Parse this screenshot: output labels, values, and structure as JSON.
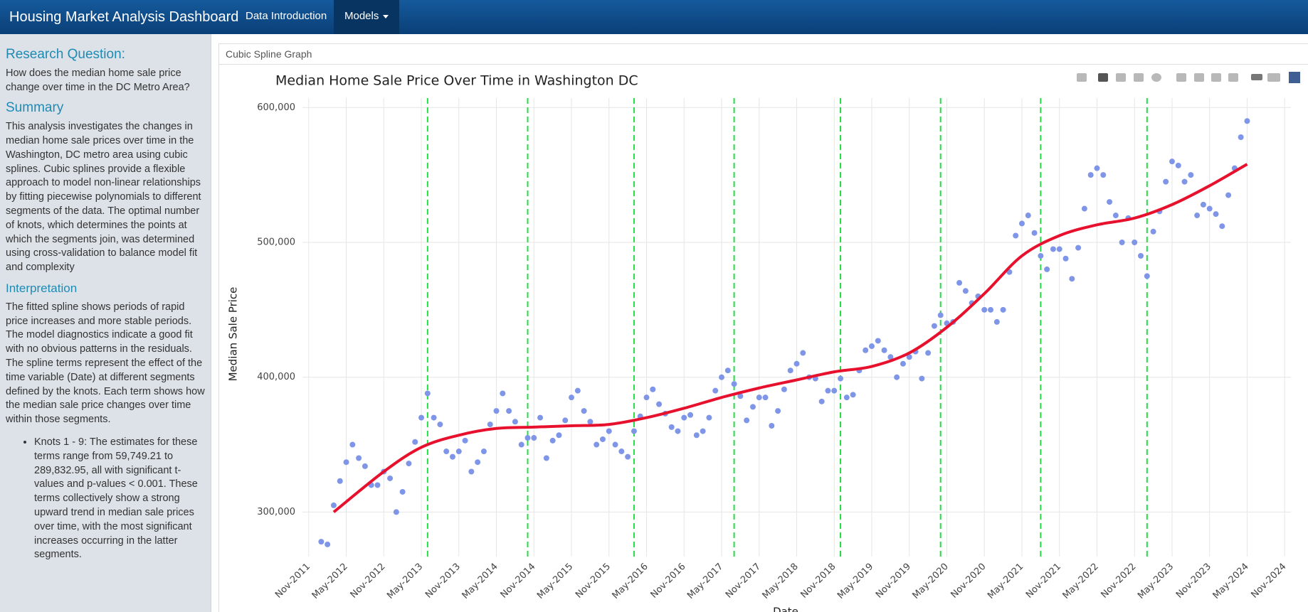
{
  "navbar": {
    "brand": "Housing Market Analysis Dashboard",
    "items": [
      "Data Introduction",
      "Models"
    ]
  },
  "sidebar": {
    "research_question": {
      "heading": "Research Question:",
      "text": "How does the median home sale price change over time in the DC Metro Area?"
    },
    "summary": {
      "heading": "Summary",
      "text": "This analysis investigates the changes in median home sale prices over time in the Washington, DC metro area using cubic splines. Cubic splines provide a flexible approach to model non-linear relationships by fitting piecewise polynomials to different segments of the data. The optimal number of knots, which determines the points at which the segments join, was determined using cross-validation to balance model fit and complexity"
    },
    "interpretation": {
      "heading": "Interpretation",
      "text": "The fitted spline shows periods of rapid price increases and more stable periods. The model diagnostics indicate a good fit with no obvious patterns in the residuals. The spline terms represent the effect of the time variable (Date) at different segments defined by the knots. Each term shows how the median sale price changes over time within those segments.",
      "bullets": [
        "Knots 1 - 9: The estimates for these terms range from 59,749.21 to 289,832.95, all with significant t-values and p-values < 0.001. These terms collectively show a strong upward trend in median sale prices over time, with the most significant increases occurring in the latter segments."
      ]
    }
  },
  "panel": {
    "header": "Cubic Spline Graph"
  },
  "chart_data": {
    "type": "scatter",
    "title": "Median Home Sale Price Over Time in Washington DC",
    "x_label": "Date",
    "y_label": "Median Sale Price",
    "x": [
      "2012-01",
      "2012-02",
      "2012-03",
      "2012-04",
      "2012-05",
      "2012-06",
      "2012-07",
      "2012-08",
      "2012-09",
      "2012-10",
      "2012-11",
      "2012-12",
      "2013-01",
      "2013-02",
      "2013-03",
      "2013-04",
      "2013-05",
      "2013-06",
      "2013-07",
      "2013-08",
      "2013-09",
      "2013-10",
      "2013-11",
      "2013-12",
      "2014-01",
      "2014-02",
      "2014-03",
      "2014-04",
      "2014-05",
      "2014-06",
      "2014-07",
      "2014-08",
      "2014-09",
      "2014-10",
      "2014-11",
      "2014-12",
      "2015-01",
      "2015-02",
      "2015-03",
      "2015-04",
      "2015-05",
      "2015-06",
      "2015-07",
      "2015-08",
      "2015-09",
      "2015-10",
      "2015-11",
      "2015-12",
      "2016-01",
      "2016-02",
      "2016-03",
      "2016-04",
      "2016-05",
      "2016-06",
      "2016-07",
      "2016-08",
      "2016-09",
      "2016-10",
      "2016-11",
      "2016-12",
      "2017-01",
      "2017-02",
      "2017-03",
      "2017-04",
      "2017-05",
      "2017-06",
      "2017-07",
      "2017-08",
      "2017-09",
      "2017-10",
      "2017-11",
      "2017-12",
      "2018-01",
      "2018-02",
      "2018-03",
      "2018-04",
      "2018-05",
      "2018-06",
      "2018-07",
      "2018-08",
      "2018-09",
      "2018-10",
      "2018-11",
      "2018-12",
      "2019-01",
      "2019-02",
      "2019-03",
      "2019-04",
      "2019-05",
      "2019-06",
      "2019-07",
      "2019-08",
      "2019-09",
      "2019-10",
      "2019-11",
      "2019-12",
      "2020-01",
      "2020-02",
      "2020-03",
      "2020-04",
      "2020-05",
      "2020-06",
      "2020-07",
      "2020-08",
      "2020-09",
      "2020-10",
      "2020-11",
      "2020-12",
      "2021-01",
      "2021-02",
      "2021-03",
      "2021-04",
      "2021-05",
      "2021-06",
      "2021-07",
      "2021-08",
      "2021-09",
      "2021-10",
      "2021-11",
      "2021-12",
      "2022-01",
      "2022-02",
      "2022-03",
      "2022-04",
      "2022-05",
      "2022-06",
      "2022-07",
      "2022-08",
      "2022-09",
      "2022-10",
      "2022-11",
      "2022-12",
      "2023-01",
      "2023-02",
      "2023-03",
      "2023-04",
      "2023-05",
      "2023-06",
      "2023-07",
      "2023-08",
      "2023-09",
      "2023-10",
      "2023-11",
      "2023-12",
      "2024-01",
      "2024-02",
      "2024-03",
      "2024-04",
      "2024-05"
    ],
    "series": [
      {
        "color": "#7f96e8",
        "values": [
          278000,
          276000,
          305000,
          323000,
          337000,
          350000,
          340000,
          334000,
          320000,
          320000,
          330000,
          325000,
          300000,
          315000,
          336000,
          352000,
          370000,
          388000,
          370000,
          365000,
          345000,
          341000,
          345000,
          353000,
          330000,
          337000,
          345000,
          365000,
          375000,
          388000,
          375000,
          367000,
          350000,
          355000,
          355000,
          370000,
          340000,
          353000,
          357000,
          368000,
          385000,
          390000,
          375000,
          367000,
          350000,
          354000,
          360000,
          350000,
          345000,
          341000,
          360000,
          371000,
          385000,
          391000,
          380000,
          373000,
          363000,
          360000,
          370000,
          372000,
          357000,
          360000,
          370000,
          390000,
          400000,
          405000,
          395000,
          386000,
          368000,
          378000,
          385000,
          385000,
          364000,
          375000,
          391000,
          405000,
          410000,
          418000,
          400000,
          399000,
          382000,
          390000,
          390000,
          399000,
          385000,
          387000,
          405000,
          420000,
          423000,
          427000,
          420000,
          415000,
          400000,
          410000,
          415000,
          419000,
          399000,
          418000,
          438000,
          446000,
          440000,
          441000,
          470000,
          464000,
          455000,
          460000,
          450000,
          450000,
          441000,
          450000,
          478000,
          505000,
          514000,
          520000,
          507000,
          490000,
          480000,
          495000,
          495000,
          488000,
          473000,
          496000,
          525000,
          550000,
          555000,
          550000,
          530000,
          520000,
          500000,
          518000,
          500000,
          490000,
          475000,
          508000,
          523000,
          545000,
          560000,
          557000,
          545000,
          550000,
          520000,
          528000,
          525000,
          521000,
          512000,
          535000,
          555000,
          578000,
          590000
        ]
      }
    ],
    "fit": {
      "color": "#e8112d",
      "x": [
        "2012-03",
        "2012-11",
        "2013-05",
        "2013-11",
        "2014-05",
        "2014-11",
        "2015-05",
        "2015-11",
        "2016-05",
        "2016-11",
        "2017-05",
        "2017-11",
        "2018-05",
        "2018-11",
        "2019-05",
        "2019-11",
        "2020-05",
        "2020-11",
        "2021-05",
        "2021-11",
        "2022-05",
        "2022-11",
        "2023-05",
        "2023-11",
        "2024-05"
      ],
      "values": [
        300000,
        330000,
        348000,
        357000,
        362000,
        363000,
        364000,
        365000,
        370000,
        377000,
        385000,
        392000,
        398000,
        404000,
        408000,
        418000,
        437000,
        462000,
        490000,
        505000,
        513000,
        518000,
        528000,
        542000,
        558000
      ]
    },
    "knots": {
      "color": "#22dd44",
      "x": [
        "2013-06",
        "2014-10",
        "2016-03",
        "2017-07",
        "2018-12",
        "2020-04",
        "2021-08",
        "2023-01"
      ]
    },
    "xlim": [
      "2011-10",
      "2024-12"
    ],
    "xticks": [
      {
        "value": "2011-11",
        "label": "Nov-2011"
      },
      {
        "value": "2012-05",
        "label": "May-2012"
      },
      {
        "value": "2012-11",
        "label": "Nov-2012"
      },
      {
        "value": "2013-05",
        "label": "May-2013"
      },
      {
        "value": "2013-11",
        "label": "Nov-2013"
      },
      {
        "value": "2014-05",
        "label": "May-2014"
      },
      {
        "value": "2014-11",
        "label": "Nov-2014"
      },
      {
        "value": "2015-05",
        "label": "May-2015"
      },
      {
        "value": "2015-11",
        "label": "Nov-2015"
      },
      {
        "value": "2016-05",
        "label": "May-2016"
      },
      {
        "value": "2016-11",
        "label": "Nov-2016"
      },
      {
        "value": "2017-05",
        "label": "May-2017"
      },
      {
        "value": "2017-11",
        "label": "Nov-2017"
      },
      {
        "value": "2018-05",
        "label": "May-2018"
      },
      {
        "value": "2018-11",
        "label": "Nov-2018"
      },
      {
        "value": "2019-05",
        "label": "May-2019"
      },
      {
        "value": "2019-11",
        "label": "Nov-2019"
      },
      {
        "value": "2020-05",
        "label": "May-2020"
      },
      {
        "value": "2020-11",
        "label": "Nov-2020"
      },
      {
        "value": "2021-05",
        "label": "May-2021"
      },
      {
        "value": "2021-11",
        "label": "Nov-2021"
      },
      {
        "value": "2022-05",
        "label": "May-2022"
      },
      {
        "value": "2022-11",
        "label": "Nov-2022"
      },
      {
        "value": "2023-05",
        "label": "May-2023"
      },
      {
        "value": "2023-11",
        "label": "Nov-2023"
      },
      {
        "value": "2024-05",
        "label": "May-2024"
      },
      {
        "value": "2024-11",
        "label": "Nov-2024"
      }
    ],
    "ylim": [
      267000,
      607000
    ],
    "yticks": [
      {
        "value": 300000,
        "label": "300,000"
      },
      {
        "value": 400000,
        "label": "400,000"
      },
      {
        "value": 500000,
        "label": "500,000"
      },
      {
        "value": 600000,
        "label": "600,000"
      }
    ],
    "grid": true
  }
}
